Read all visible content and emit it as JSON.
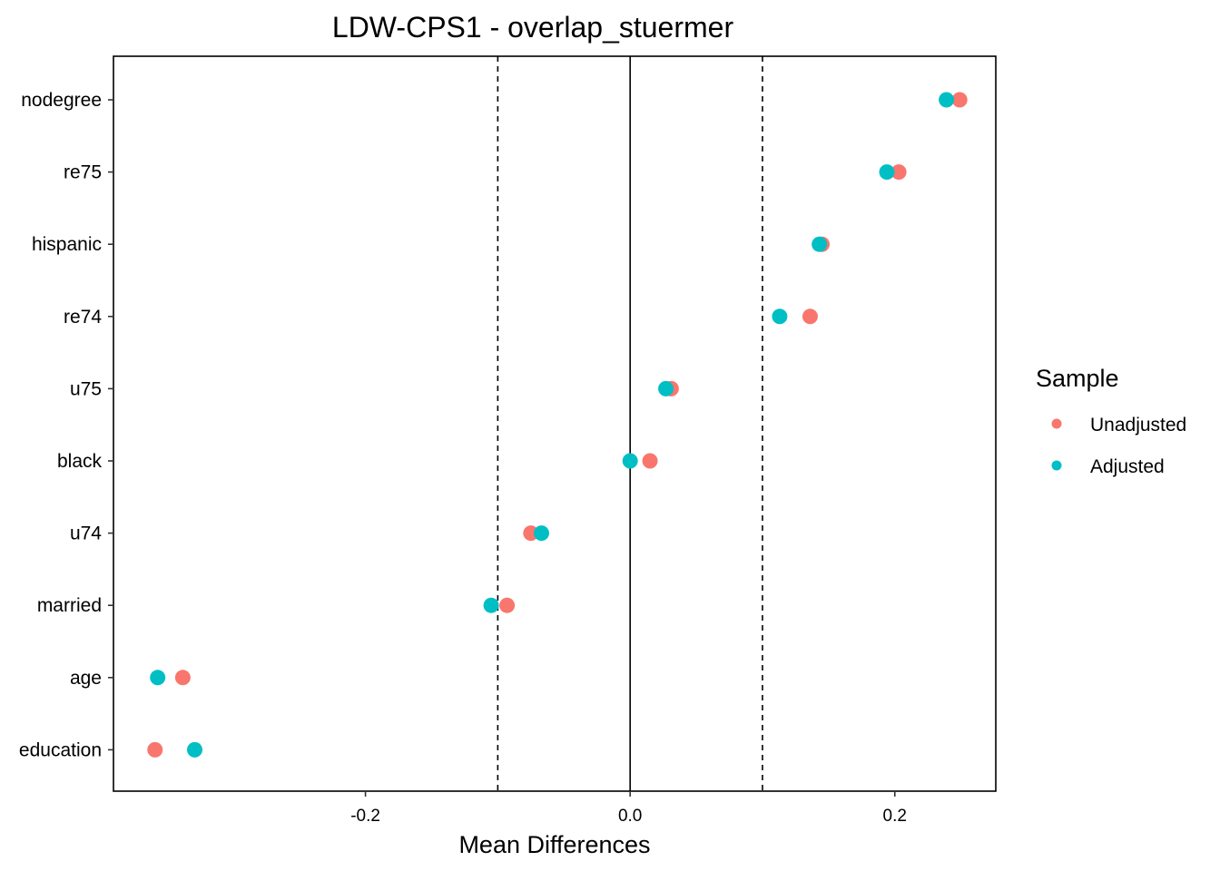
{
  "chart_data": {
    "type": "scatter",
    "title": "LDW-CPS1 - overlap_stuermer",
    "xlabel": "Mean Differences",
    "ylabel": "",
    "xlim": [
      -0.3904,
      0.2763
    ],
    "x_ticks": [
      -0.2,
      0.0,
      0.2
    ],
    "x_tick_labels": [
      "-0.2",
      "0.0",
      "0.2"
    ],
    "reference_lines": [
      {
        "x": 0,
        "style": "solid"
      },
      {
        "x": -0.1,
        "style": "dashed"
      },
      {
        "x": 0.1,
        "style": "dashed"
      }
    ],
    "categories": [
      "nodegree",
      "re75",
      "hispanic",
      "re74",
      "u75",
      "black",
      "u74",
      "married",
      "age",
      "education"
    ],
    "series": [
      {
        "name": "Unadjusted",
        "color": "#F8766D",
        "values": [
          0.249,
          0.203,
          0.145,
          0.136,
          0.031,
          0.015,
          -0.075,
          -0.093,
          -0.338,
          -0.359
        ]
      },
      {
        "name": "Adjusted",
        "color": "#00BFC4",
        "values": [
          0.239,
          0.194,
          0.143,
          0.113,
          0.027,
          0.0,
          -0.067,
          -0.105,
          -0.357,
          -0.329
        ]
      }
    ],
    "grid": false,
    "legend": {
      "title": "Sample",
      "placement": "right"
    }
  }
}
